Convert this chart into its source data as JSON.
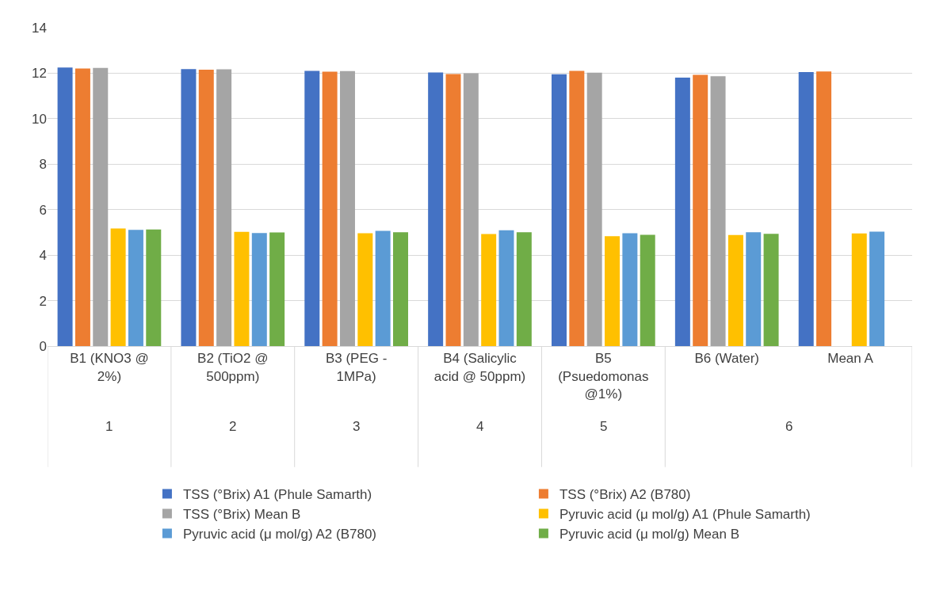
{
  "chart_data": {
    "type": "bar",
    "categories": [
      "B1 (KNO3 @ 2%)",
      "B2 (TiO2 @ 500ppm)",
      "B3 (PEG - 1MPa)",
      "B4 (Salicylic acid @ 50ppm)",
      "B5 (Psuedomonas @1%)",
      "B6 (Water)",
      "Mean A"
    ],
    "series": [
      {
        "name": "TSS (°Brix) A1 (Phule Samarth)",
        "color": "#4472c4",
        "values": [
          12.25,
          12.18,
          12.1,
          12.03,
          11.95,
          11.81,
          12.05
        ]
      },
      {
        "name": "TSS (°Brix) A2 (B780)",
        "color": "#ed7d31",
        "values": [
          12.21,
          12.15,
          12.07,
          11.96,
          12.1,
          11.93,
          12.08
        ]
      },
      {
        "name": "TSS (°Brix) Mean B",
        "color": "#a5a5a5",
        "values": [
          12.23,
          12.17,
          12.09,
          12.0,
          12.02,
          11.87,
          null
        ]
      },
      {
        "name": "Pyruvic acid (μ mol/g) A1 (Phule Samarth)",
        "color": "#ffc000",
        "values": [
          5.17,
          5.02,
          4.96,
          4.93,
          4.83,
          4.88,
          4.95
        ]
      },
      {
        "name": "Pyruvic acid (μ mol/g) A2 (B780)",
        "color": "#5b9bd5",
        "values": [
          5.11,
          4.97,
          5.07,
          5.09,
          4.96,
          5.01,
          5.03
        ]
      },
      {
        "name": "Pyruvic acid (μ mol/g) Mean B",
        "color": "#70ad47",
        "values": [
          5.13,
          5.0,
          5.01,
          5.01,
          4.89,
          4.94,
          null
        ]
      }
    ],
    "annotations": [
      "1",
      "2",
      "3",
      "4",
      "5",
      "6"
    ],
    "ylim": [
      0,
      14
    ],
    "yticks": [
      0,
      2,
      4,
      6,
      8,
      10,
      12,
      14
    ],
    "grid": "y",
    "legend": "bottom"
  }
}
